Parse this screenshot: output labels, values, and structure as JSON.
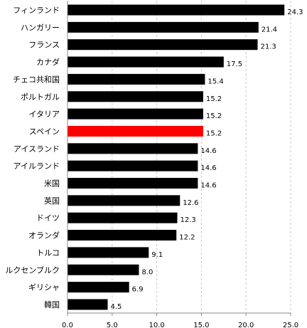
{
  "chart_data": {
    "type": "bar",
    "orientation": "horizontal",
    "categories": [
      "フィンランド",
      "ハンガリー",
      "フランス",
      "カナダ",
      "チェコ共和国",
      "ポルトガル",
      "イタリア",
      "スペイン",
      "アイスランド",
      "アイルランド",
      "米国",
      "英国",
      "ドイツ",
      "オランダ",
      "トルコ",
      "ルクセンブルク",
      "ギリシャ",
      "韓国"
    ],
    "values": [
      24.3,
      21.4,
      21.3,
      17.5,
      15.4,
      15.2,
      15.2,
      15.2,
      14.6,
      14.6,
      14.6,
      12.6,
      12.3,
      12.2,
      9.1,
      8.0,
      6.9,
      4.5
    ],
    "value_labels": [
      "24.3",
      "21.4",
      "21.3",
      "17.5",
      "15.4",
      "15.2",
      "15.2",
      "15.2",
      "14.6",
      "14.6",
      "14.6",
      "12.6",
      "12.3",
      "12.2",
      "9.1",
      "8.0",
      "6.9",
      "4.5"
    ],
    "highlight_index": 7,
    "xlim": [
      0,
      25
    ],
    "xticks": [
      "0.0",
      "5.0",
      "10.0",
      "15.0",
      "20.0",
      "25.0"
    ],
    "grid": "vertical-dashed",
    "title": "",
    "xlabel": "",
    "ylabel": "",
    "colors": {
      "bar": "#000000",
      "highlight": "#ff0000",
      "grid": "#c8c8c8",
      "axis": "#888888"
    }
  }
}
